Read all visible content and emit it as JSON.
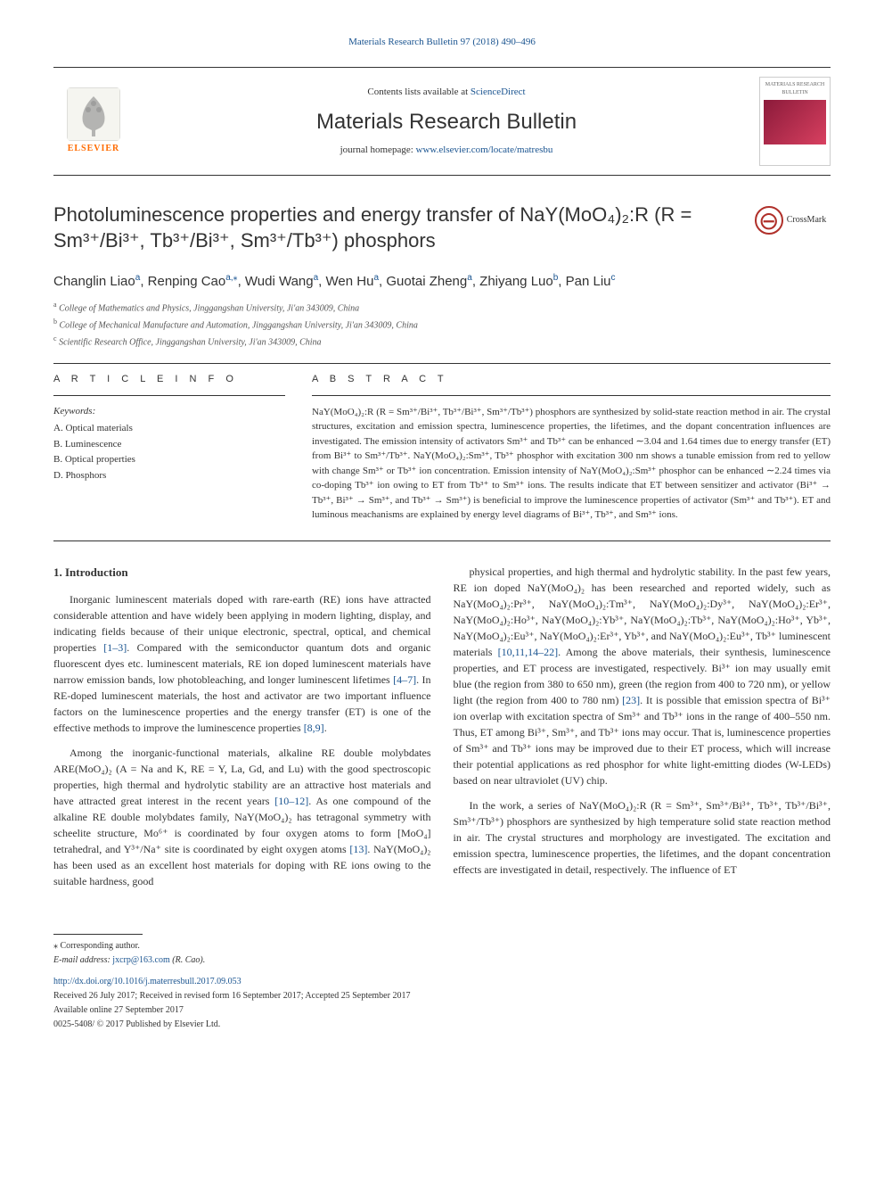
{
  "top_reference": "Materials Research Bulletin 97 (2018) 490–496",
  "header": {
    "contents_text": "Contents lists available at ",
    "contents_link": "ScienceDirect",
    "journal_name": "Materials Research Bulletin",
    "homepage_text": "journal homepage: ",
    "homepage_link": "www.elsevier.com/locate/matresbu",
    "elsevier_label": "ELSEVIER",
    "cover_title": "MATERIALS RESEARCH BULLETIN"
  },
  "title": "Photoluminescence properties and energy transfer of NaY(MoO₄)₂:R (R = Sm³⁺/Bi³⁺, Tb³⁺/Bi³⁺, Sm³⁺/Tb³⁺) phosphors",
  "crossmark": "CrossMark",
  "authors": [
    {
      "name": "Changlin Liao",
      "sup": "a"
    },
    {
      "name": "Renping Cao",
      "sup": "a,⁎"
    },
    {
      "name": "Wudi Wang",
      "sup": "a"
    },
    {
      "name": "Wen Hu",
      "sup": "a"
    },
    {
      "name": "Guotai Zheng",
      "sup": "a"
    },
    {
      "name": "Zhiyang Luo",
      "sup": "b"
    },
    {
      "name": "Pan Liu",
      "sup": "c"
    }
  ],
  "affiliations": [
    {
      "sup": "a",
      "text": "College of Mathematics and Physics, Jinggangshan University, Ji'an 343009, China"
    },
    {
      "sup": "b",
      "text": "College of Mechanical Manufacture and Automation, Jinggangshan University, Ji'an 343009, China"
    },
    {
      "sup": "c",
      "text": "Scientific Research Office, Jinggangshan University, Ji'an 343009, China"
    }
  ],
  "article_info": {
    "header": "A R T I C L E   I N F O",
    "keywords_label": "Keywords:",
    "keywords": [
      "A. Optical materials",
      "B. Luminescence",
      "B. Optical properties",
      "D. Phosphors"
    ]
  },
  "abstract": {
    "header": "A B S T R A C T",
    "text": "NaY(MoO₄)₂:R (R = Sm³⁺/Bi³⁺, Tb³⁺/Bi³⁺, Sm³⁺/Tb³⁺) phosphors are synthesized by solid-state reaction method in air. The crystal structures, excitation and emission spectra, luminescence properties, the lifetimes, and the dopant concentration influences are investigated. The emission intensity of activators Sm³⁺ and Tb³⁺ can be enhanced ∼3.04 and 1.64 times due to energy transfer (ET) from Bi³⁺ to Sm³⁺/Tb³⁺. NaY(MoO₄)₂:Sm³⁺, Tb³⁺ phosphor with excitation 300 nm shows a tunable emission from red to yellow with change Sm³⁺ or Tb³⁺ ion concentration. Emission intensity of NaY(MoO₄)₂:Sm³⁺ phosphor can be enhanced ∼2.24 times via co-doping Tb³⁺ ion owing to ET from Tb³⁺ to Sm³⁺ ions. The results indicate that ET between sensitizer and activator (Bi³⁺ → Tb³⁺, Bi³⁺ → Sm³⁺, and Tb³⁺ → Sm³⁺) is beneficial to improve the luminescence properties of activator (Sm³⁺ and Tb³⁺). ET and luminous meachanisms are explained by energy level diagrams of Bi³⁺, Tb³⁺, and Sm³⁺ ions."
  },
  "body": {
    "section_heading": "1. Introduction",
    "left_column": [
      "Inorganic luminescent materials doped with rare-earth (RE) ions have attracted considerable attention and have widely been applying in modern lighting, display, and indicating fields because of their unique electronic, spectral, optical, and chemical properties [1–3]. Compared with the semiconductor quantum dots and organic fluorescent dyes etc. luminescent materials, RE ion doped luminescent materials have narrow emission bands, low photobleaching, and longer luminescent lifetimes [4–7]. In RE-doped luminescent materials, the host and activator are two important influence factors on the luminescence properties and the energy transfer (ET) is one of the effective methods to improve the luminescence properties [8,9].",
      "Among the inorganic-functional materials, alkaline RE double molybdates ARE(MoO₄)₂ (A = Na and K, RE = Y, La, Gd, and Lu) with the good spectroscopic properties, high thermal and hydrolytic stability are an attractive host materials and have attracted great interest in the recent years [10–12]. As one compound of the alkaline RE double molybdates family, NaY(MoO₄)₂ has tetragonal symmetry with scheelite structure, Mo⁶⁺ is coordinated by four oxygen atoms to form [MoO₄] tetrahedral, and Y³⁺/Na⁺ site is coordinated by eight oxygen atoms [13]. NaY(MoO₄)₂ has been used as an excellent host materials for doping with RE ions owing to the suitable hardness, good"
    ],
    "right_column": [
      "physical properties, and high thermal and hydrolytic stability. In the past few years, RE ion doped NaY(MoO₄)₂ has been researched and reported widely, such as NaY(MoO₄)₂:Pr³⁺, NaY(MoO₄)₂:Tm³⁺, NaY(MoO₄)₂:Dy³⁺, NaY(MoO₄)₂:Er³⁺, NaY(MoO₄)₂:Ho³⁺, NaY(MoO₄)₂:Yb³⁺, NaY(MoO₄)₂:Tb³⁺, NaY(MoO₄)₂:Ho³⁺, Yb³⁺, NaY(MoO₄)₂:Eu³⁺, NaY(MoO₄)₂:Er³⁺, Yb³⁺, and NaY(MoO₄)₂:Eu³⁺, Tb³⁺ luminescent materials [10,11,14–22]. Among the above materials, their synthesis, luminescence properties, and ET process are investigated, respectively. Bi³⁺ ion may usually emit blue (the region from 380 to 650 nm), green (the region from 400 to 720 nm), or yellow light (the region from 400 to 780 nm) [23]. It is possible that emission spectra of Bi³⁺ ion overlap with excitation spectra of Sm³⁺ and Tb³⁺ ions in the range of 400–550 nm. Thus, ET among Bi³⁺, Sm³⁺, and Tb³⁺ ions may occur. That is, luminescence properties of Sm³⁺ and Tb³⁺ ions may be improved due to their ET process, which will increase their potential applications as red phosphor for white light-emitting diodes (W-LEDs) based on near ultraviolet (UV) chip.",
      "In the work, a series of NaY(MoO₄)₂:R (R = Sm³⁺, Sm³⁺/Bi³⁺, Tb³⁺, Tb³⁺/Bi³⁺, Sm³⁺/Tb³⁺) phosphors are synthesized by high temperature solid state reaction method in air. The crystal structures and morphology are investigated. The excitation and emission spectra, luminescence properties, the lifetimes, and the dopant concentration effects are investigated in detail, respectively. The influence of ET"
    ]
  },
  "footer": {
    "corresponding": "⁎ Corresponding author.",
    "email_label": "E-mail address: ",
    "email": "jxcrp@163.com",
    "email_suffix": " (R. Cao).",
    "doi": "http://dx.doi.org/10.1016/j.materresbull.2017.09.053",
    "received": "Received 26 July 2017; Received in revised form 16 September 2017; Accepted 25 September 2017",
    "available": "Available online 27 September 2017",
    "copyright": "0025-5408/ © 2017 Published by Elsevier Ltd."
  },
  "colors": {
    "link_color": "#1a5490",
    "text_color": "#333333",
    "elsevier_orange": "#ff6b00",
    "crossmark_red": "#b0302a"
  }
}
